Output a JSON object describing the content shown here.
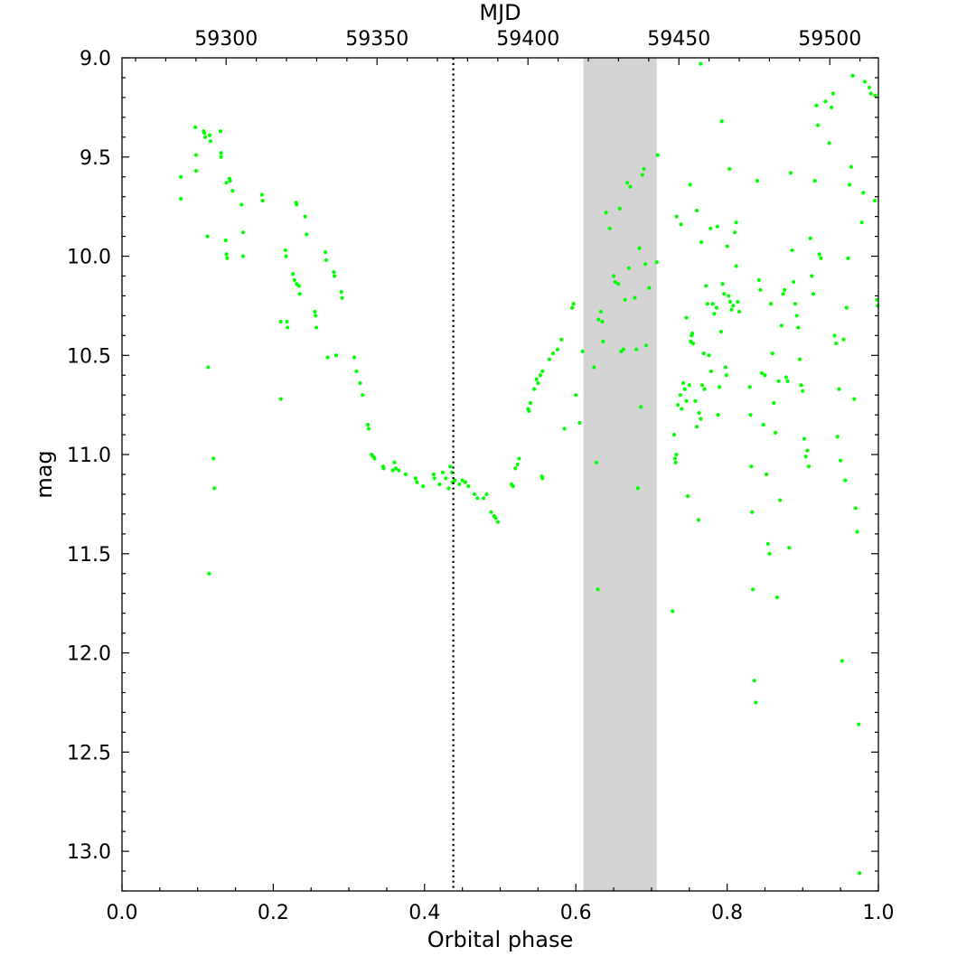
{
  "chart_data": {
    "type": "scatter",
    "title": "",
    "xlabel": "Orbital phase",
    "ylabel": "mag",
    "top_xlabel": "MJD",
    "xlim": [
      0.0,
      1.0
    ],
    "ylim": [
      9.0,
      13.2
    ],
    "y_inverted": true,
    "x_ticks": [
      0.0,
      0.2,
      0.4,
      0.6,
      0.8,
      1.0
    ],
    "x_tick_labels": [
      "0.0",
      "0.2",
      "0.4",
      "0.6",
      "0.8",
      "1.0"
    ],
    "y_ticks": [
      9.0,
      9.5,
      10.0,
      10.5,
      11.0,
      11.5,
      12.0,
      12.5,
      13.0
    ],
    "y_tick_labels": [
      "9.0",
      "9.5",
      "10.0",
      "10.5",
      "11.0",
      "11.5",
      "12.0",
      "12.5",
      "13.0"
    ],
    "top_ticks": [
      59300,
      59350,
      59400,
      59450,
      59500
    ],
    "top_tick_labels": [
      "59300",
      "59350",
      "59400",
      "59450",
      "59500"
    ],
    "top_axis_mapping": {
      "mjd_at_phase0": 59265.5,
      "days_per_phase_unit": 250.6
    },
    "vline": {
      "x": 0.438,
      "style": "dotted",
      "color": "#000000"
    },
    "shaded_band": {
      "x0": 0.61,
      "x1": 0.707,
      "color": "#d3d3d3"
    },
    "grid": false,
    "legend": "none",
    "marker_color": "#00ff00",
    "points": [
      [
        0.078,
        9.6
      ],
      [
        0.078,
        9.71
      ],
      [
        0.097,
        9.35
      ],
      [
        0.098,
        9.49
      ],
      [
        0.098,
        9.57
      ],
      [
        0.108,
        9.37
      ],
      [
        0.109,
        9.38
      ],
      [
        0.11,
        9.4
      ],
      [
        0.116,
        9.39
      ],
      [
        0.117,
        9.42
      ],
      [
        0.13,
        9.37
      ],
      [
        0.131,
        9.48
      ],
      [
        0.131,
        9.5
      ],
      [
        0.138,
        9.63
      ],
      [
        0.142,
        9.61
      ],
      [
        0.143,
        9.62
      ],
      [
        0.146,
        9.67
      ],
      [
        0.158,
        9.74
      ],
      [
        0.16,
        9.88
      ],
      [
        0.185,
        9.69
      ],
      [
        0.186,
        9.72
      ],
      [
        0.113,
        9.9
      ],
      [
        0.137,
        9.92
      ],
      [
        0.138,
        9.99
      ],
      [
        0.139,
        10.01
      ],
      [
        0.16,
        10.0
      ],
      [
        0.114,
        10.56
      ],
      [
        0.121,
        11.02
      ],
      [
        0.122,
        11.17
      ],
      [
        0.115,
        11.6
      ],
      [
        0.21,
        10.33
      ],
      [
        0.21,
        10.72
      ],
      [
        0.216,
        9.97
      ],
      [
        0.217,
        10.0
      ],
      [
        0.218,
        10.33
      ],
      [
        0.219,
        10.36
      ],
      [
        0.226,
        10.09
      ],
      [
        0.228,
        10.12
      ],
      [
        0.231,
        10.14
      ],
      [
        0.234,
        10.15
      ],
      [
        0.235,
        10.19
      ],
      [
        0.23,
        9.73
      ],
      [
        0.231,
        9.74
      ],
      [
        0.242,
        9.8
      ],
      [
        0.244,
        9.89
      ],
      [
        0.255,
        10.28
      ],
      [
        0.256,
        10.3
      ],
      [
        0.257,
        10.36
      ],
      [
        0.269,
        9.98
      ],
      [
        0.27,
        10.02
      ],
      [
        0.272,
        10.51
      ],
      [
        0.28,
        10.08
      ],
      [
        0.281,
        10.1
      ],
      [
        0.283,
        10.5
      ],
      [
        0.29,
        10.18
      ],
      [
        0.291,
        10.21
      ],
      [
        0.307,
        10.51
      ],
      [
        0.31,
        10.58
      ],
      [
        0.315,
        10.64
      ],
      [
        0.318,
        10.7
      ],
      [
        0.325,
        10.85
      ],
      [
        0.326,
        10.87
      ],
      [
        0.33,
        11.0
      ],
      [
        0.332,
        11.01
      ],
      [
        0.334,
        11.02
      ],
      [
        0.345,
        11.06
      ],
      [
        0.346,
        11.07
      ],
      [
        0.358,
        11.08
      ],
      [
        0.36,
        11.04
      ],
      [
        0.362,
        11.07
      ],
      [
        0.366,
        11.08
      ],
      [
        0.375,
        11.1
      ],
      [
        0.388,
        11.12
      ],
      [
        0.39,
        11.14
      ],
      [
        0.398,
        11.16
      ],
      [
        0.412,
        11.1
      ],
      [
        0.413,
        11.12
      ],
      [
        0.42,
        11.15
      ],
      [
        0.424,
        11.09
      ],
      [
        0.428,
        11.12
      ],
      [
        0.432,
        11.17
      ],
      [
        0.434,
        11.06
      ],
      [
        0.436,
        11.09
      ],
      [
        0.437,
        11.14
      ],
      [
        0.44,
        11.13
      ],
      [
        0.446,
        11.15
      ],
      [
        0.45,
        11.13
      ],
      [
        0.454,
        11.14
      ],
      [
        0.458,
        11.16
      ],
      [
        0.466,
        11.2
      ],
      [
        0.47,
        11.22
      ],
      [
        0.478,
        11.22
      ],
      [
        0.482,
        11.2
      ],
      [
        0.488,
        11.29
      ],
      [
        0.492,
        11.31
      ],
      [
        0.494,
        11.32
      ],
      [
        0.497,
        11.34
      ],
      [
        0.515,
        11.15
      ],
      [
        0.517,
        11.16
      ],
      [
        0.52,
        11.07
      ],
      [
        0.523,
        11.05
      ],
      [
        0.525,
        11.02
      ],
      [
        0.537,
        10.77
      ],
      [
        0.538,
        10.78
      ],
      [
        0.54,
        10.74
      ],
      [
        0.545,
        10.67
      ],
      [
        0.548,
        10.62
      ],
      [
        0.55,
        10.64
      ],
      [
        0.553,
        10.6
      ],
      [
        0.556,
        10.58
      ],
      [
        0.555,
        11.11
      ],
      [
        0.556,
        11.12
      ],
      [
        0.565,
        10.52
      ],
      [
        0.57,
        10.49
      ],
      [
        0.576,
        10.47
      ],
      [
        0.581,
        10.42
      ],
      [
        0.585,
        10.87
      ],
      [
        0.595,
        10.26
      ],
      [
        0.597,
        10.24
      ],
      [
        0.6,
        10.7
      ],
      [
        0.605,
        10.84
      ],
      [
        0.609,
        10.48
      ],
      [
        0.624,
        10.56
      ],
      [
        0.627,
        11.04
      ],
      [
        0.629,
        11.68
      ],
      [
        0.63,
        10.32
      ],
      [
        0.633,
        10.28
      ],
      [
        0.635,
        10.33
      ],
      [
        0.636,
        10.43
      ],
      [
        0.64,
        9.78
      ],
      [
        0.645,
        9.86
      ],
      [
        0.65,
        10.1
      ],
      [
        0.652,
        10.13
      ],
      [
        0.656,
        10.14
      ],
      [
        0.658,
        9.76
      ],
      [
        0.66,
        10.48
      ],
      [
        0.663,
        10.47
      ],
      [
        0.665,
        10.22
      ],
      [
        0.668,
        9.63
      ],
      [
        0.67,
        10.06
      ],
      [
        0.672,
        9.65
      ],
      [
        0.678,
        10.21
      ],
      [
        0.68,
        10.47
      ],
      [
        0.682,
        11.17
      ],
      [
        0.684,
        9.96
      ],
      [
        0.686,
        10.76
      ],
      [
        0.688,
        9.59
      ],
      [
        0.69,
        9.56
      ],
      [
        0.692,
        10.04
      ],
      [
        0.693,
        10.45
      ],
      [
        0.697,
        10.16
      ],
      [
        0.707,
        10.03
      ],
      [
        0.708,
        9.49
      ],
      [
        0.728,
        11.79
      ],
      [
        0.73,
        10.9
      ],
      [
        0.731,
        11.02
      ],
      [
        0.732,
        11.04
      ],
      [
        0.733,
        11.0
      ],
      [
        0.735,
        10.75
      ],
      [
        0.738,
        10.7
      ],
      [
        0.74,
        10.77
      ],
      [
        0.742,
        10.64
      ],
      [
        0.744,
        10.67
      ],
      [
        0.746,
        10.73
      ],
      [
        0.748,
        11.21
      ],
      [
        0.75,
        10.65
      ],
      [
        0.752,
        10.43
      ],
      [
        0.753,
        10.4
      ],
      [
        0.754,
        10.39
      ],
      [
        0.755,
        10.44
      ],
      [
        0.758,
        10.73
      ],
      [
        0.76,
        10.86
      ],
      [
        0.762,
        11.33
      ],
      [
        0.763,
        10.79
      ],
      [
        0.765,
        10.82
      ],
      [
        0.767,
        10.65
      ],
      [
        0.769,
        10.49
      ],
      [
        0.77,
        10.67
      ],
      [
        0.772,
        10.15
      ],
      [
        0.774,
        10.24
      ],
      [
        0.776,
        10.5
      ],
      [
        0.779,
        10.58
      ],
      [
        0.781,
        10.24
      ],
      [
        0.783,
        10.29
      ],
      [
        0.786,
        10.26
      ],
      [
        0.788,
        10.8
      ],
      [
        0.79,
        10.66
      ],
      [
        0.792,
        10.38
      ],
      [
        0.794,
        10.14
      ],
      [
        0.796,
        10.19
      ],
      [
        0.798,
        10.56
      ],
      [
        0.799,
        10.6
      ],
      [
        0.8,
        9.95
      ],
      [
        0.802,
        10.2
      ],
      [
        0.804,
        10.23
      ],
      [
        0.806,
        10.27
      ],
      [
        0.808,
        10.25
      ],
      [
        0.81,
        9.88
      ],
      [
        0.812,
        10.05
      ],
      [
        0.814,
        10.23
      ],
      [
        0.816,
        10.28
      ],
      [
        0.76,
        9.77
      ],
      [
        0.751,
        9.64
      ],
      [
        0.766,
        9.93
      ],
      [
        0.787,
        9.85
      ],
      [
        0.812,
        9.83
      ],
      [
        0.778,
        9.86
      ],
      [
        0.733,
        9.8
      ],
      [
        0.739,
        9.84
      ],
      [
        0.746,
        10.31
      ],
      [
        0.765,
        9.03
      ],
      [
        0.793,
        9.32
      ],
      [
        0.803,
        9.56
      ],
      [
        0.83,
        10.66
      ],
      [
        0.831,
        10.8
      ],
      [
        0.832,
        11.06
      ],
      [
        0.833,
        11.29
      ],
      [
        0.834,
        11.68
      ],
      [
        0.836,
        12.14
      ],
      [
        0.838,
        12.25
      ],
      [
        0.84,
        9.62
      ],
      [
        0.842,
        10.12
      ],
      [
        0.844,
        10.17
      ],
      [
        0.846,
        10.59
      ],
      [
        0.848,
        10.85
      ],
      [
        0.85,
        10.6
      ],
      [
        0.852,
        11.1
      ],
      [
        0.854,
        11.45
      ],
      [
        0.856,
        11.5
      ],
      [
        0.858,
        10.24
      ],
      [
        0.86,
        10.49
      ],
      [
        0.862,
        10.74
      ],
      [
        0.864,
        10.89
      ],
      [
        0.866,
        11.72
      ],
      [
        0.868,
        10.63
      ],
      [
        0.87,
        11.23
      ],
      [
        0.872,
        10.35
      ],
      [
        0.874,
        10.19
      ],
      [
        0.876,
        10.17
      ],
      [
        0.878,
        10.61
      ],
      [
        0.88,
        10.63
      ],
      [
        0.882,
        11.47
      ],
      [
        0.884,
        9.58
      ],
      [
        0.886,
        9.97
      ],
      [
        0.888,
        10.13
      ],
      [
        0.89,
        10.24
      ],
      [
        0.892,
        10.3
      ],
      [
        0.894,
        10.36
      ],
      [
        0.896,
        10.52
      ],
      [
        0.898,
        10.65
      ],
      [
        0.9,
        10.68
      ],
      [
        0.902,
        10.92
      ],
      [
        0.904,
        11.01
      ],
      [
        0.906,
        10.98
      ],
      [
        0.908,
        11.06
      ],
      [
        0.91,
        9.91
      ],
      [
        0.912,
        10.1
      ],
      [
        0.914,
        10.19
      ],
      [
        0.916,
        9.62
      ],
      [
        0.918,
        9.24
      ],
      [
        0.92,
        9.34
      ],
      [
        0.922,
        9.99
      ],
      [
        0.924,
        10.01
      ],
      [
        0.93,
        9.22
      ],
      [
        0.935,
        9.43
      ],
      [
        0.938,
        9.25
      ],
      [
        0.94,
        9.18
      ],
      [
        0.942,
        10.4
      ],
      [
        0.944,
        10.44
      ],
      [
        0.946,
        10.91
      ],
      [
        0.948,
        10.67
      ],
      [
        0.95,
        11.03
      ],
      [
        0.952,
        12.04
      ],
      [
        0.954,
        10.42
      ],
      [
        0.956,
        11.13
      ],
      [
        0.958,
        10.26
      ],
      [
        0.96,
        10.01
      ],
      [
        0.962,
        9.64
      ],
      [
        0.964,
        9.55
      ],
      [
        0.966,
        9.09
      ],
      [
        0.968,
        10.72
      ],
      [
        0.97,
        11.27
      ],
      [
        0.972,
        11.39
      ],
      [
        0.974,
        12.36
      ],
      [
        0.975,
        13.11
      ],
      [
        0.978,
        9.83
      ],
      [
        0.98,
        9.68
      ],
      [
        0.982,
        9.12
      ],
      [
        0.988,
        9.15
      ],
      [
        0.99,
        9.18
      ],
      [
        0.995,
        9.72
      ],
      [
        0.998,
        10.22
      ],
      [
        0.999,
        10.25
      ],
      [
        0.996,
        9.19
      ]
    ]
  }
}
